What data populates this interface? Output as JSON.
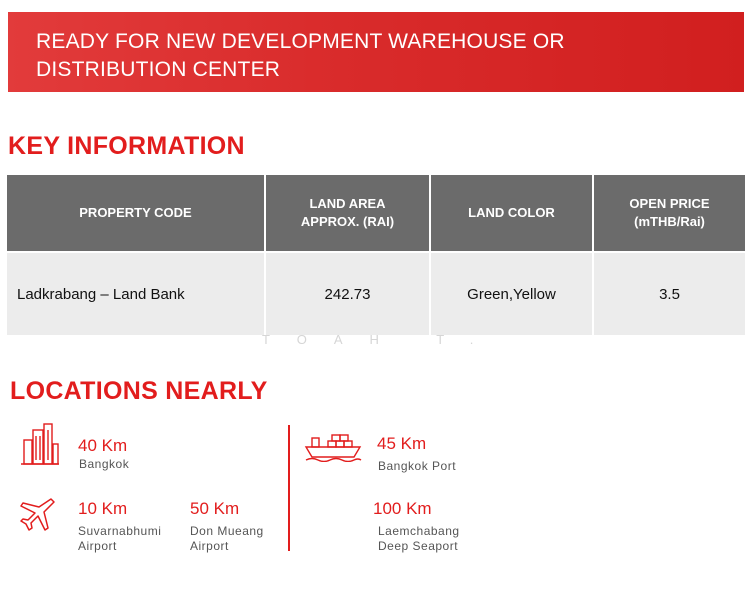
{
  "banner": {
    "line1": "READY FOR NEW DEVELOPMENT WAREHOUSE OR",
    "line2": "DISTRIBUTION CENTER"
  },
  "key_info": {
    "title": "KEY INFORMATION",
    "headers": {
      "property_code": "PROPERTY CODE",
      "land_area_line1": "LAND AREA",
      "land_area_line2": "APPROX. (RAI)",
      "land_color": "LAND COLOR",
      "open_price_line1": "OPEN PRICE",
      "open_price_line2": "(mTHB/Rai)"
    },
    "row": {
      "property_code": "Ladkrabang – Land Bank",
      "land_area": "242.73",
      "land_color": "Green,Yellow",
      "open_price": "3.5"
    }
  },
  "watermark": "TOAH T.",
  "locations": {
    "title": "LOCATIONS NEARLY",
    "bangkok": {
      "distance": "40 Km",
      "name": "Bangkok",
      "icon": "city-buildings-icon"
    },
    "suvarnabhumi": {
      "distance": "10 Km",
      "name_line1": "Suvarnabhumi",
      "name_line2": "Airport",
      "icon": "airplane-icon"
    },
    "don_mueang": {
      "distance": "50 Km",
      "name_line1": "Don Mueang",
      "name_line2": "Airport"
    },
    "bangkok_port": {
      "distance": "45 Km",
      "name": "Bangkok Port",
      "icon": "cargo-ship-icon"
    },
    "laemchabang": {
      "distance": "100 Km",
      "name_line1": "Laemchabang",
      "name_line2": "Deep Seaport"
    }
  },
  "colors": {
    "accent": "#e21d1d",
    "table_header": "#6b6b6b",
    "table_row": "#ececec"
  }
}
